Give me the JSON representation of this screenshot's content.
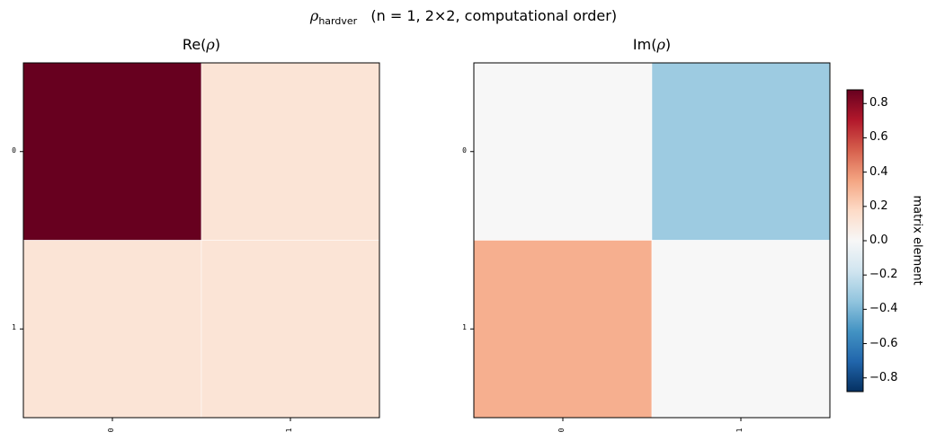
{
  "title": {
    "rho": "ρ",
    "rho_sub": "hardver",
    "rest": "(n = 1, 2×2, computational order)"
  },
  "chart_data": [
    {
      "type": "heatmap",
      "title": "Re(ρ)",
      "title_prefix": "Re(",
      "title_symbol": "ρ",
      "title_suffix": ")",
      "x_ticks": [
        "0",
        "1"
      ],
      "y_ticks": [
        "0",
        "1"
      ],
      "matrix": [
        [
          0.88,
          0.12
        ],
        [
          0.12,
          0.12
        ]
      ],
      "colormap": "RdBu_r",
      "vmin": -0.88,
      "vmax": 0.88
    },
    {
      "type": "heatmap",
      "title": "Im(ρ)",
      "title_prefix": "Im(",
      "title_symbol": "ρ",
      "title_suffix": ")",
      "x_ticks": [
        "0",
        "1"
      ],
      "y_ticks": [
        "0",
        "1"
      ],
      "matrix": [
        [
          0.0,
          -0.32
        ],
        [
          0.32,
          0.0
        ]
      ],
      "colormap": "RdBu_r",
      "vmin": -0.88,
      "vmax": 0.88
    }
  ],
  "colorbar": {
    "label": "matrix element",
    "ticks": [
      "0.8",
      "0.6",
      "0.4",
      "0.2",
      "0.0",
      "−0.2",
      "−0.4",
      "−0.6",
      "−0.8"
    ],
    "tick_values": [
      0.8,
      0.6,
      0.4,
      0.2,
      0.0,
      -0.2,
      -0.4,
      -0.6,
      -0.8
    ],
    "colors": {
      "max": "#67001f",
      "mid": "#f7f7f7",
      "min": "#053061"
    }
  }
}
